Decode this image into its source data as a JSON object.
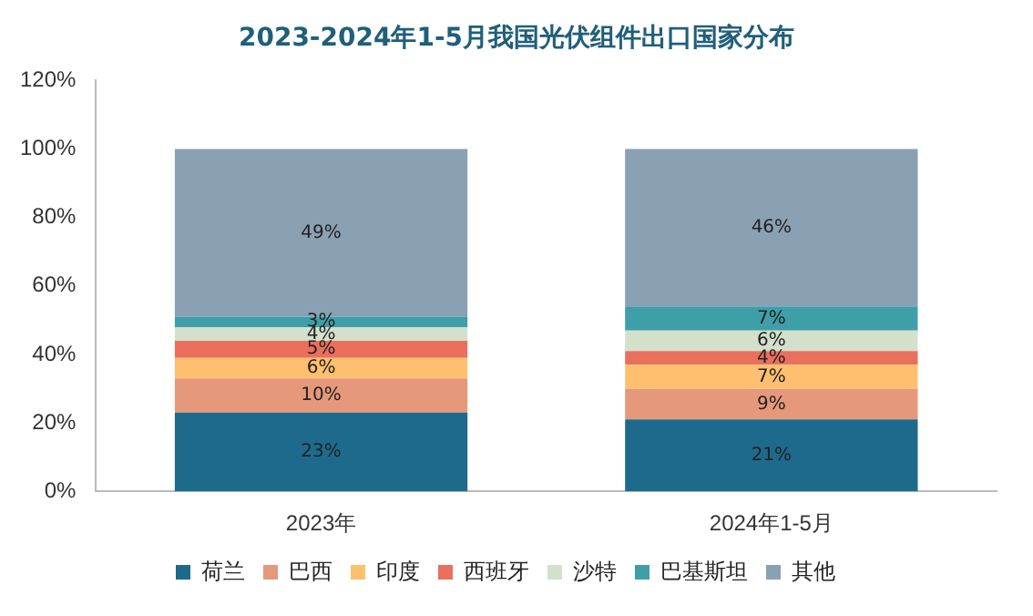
{
  "chart_data": {
    "type": "bar",
    "title": "2023-2024年1-5月我国光伏组件出口国家分布",
    "categories": [
      "2023年",
      "2024年1-5月"
    ],
    "stacked": true,
    "ylim": [
      0,
      120
    ],
    "yticks": [
      {
        "value": 0,
        "label": "0%"
      },
      {
        "value": 20,
        "label": "20%"
      },
      {
        "value": 40,
        "label": "40%"
      },
      {
        "value": 60,
        "label": "60%"
      },
      {
        "value": 80,
        "label": "80%"
      },
      {
        "value": 100,
        "label": "100%"
      },
      {
        "value": 120,
        "label": "120%"
      }
    ],
    "grid": false,
    "legend": "bottom",
    "series": [
      {
        "name": "荷兰",
        "color": "#1d6a8c",
        "values": [
          23,
          21
        ],
        "value_labels": [
          "23%",
          "21%"
        ]
      },
      {
        "name": "巴西",
        "color": "#e5997a",
        "values": [
          10,
          9
        ],
        "value_labels": [
          "10%",
          "9%"
        ]
      },
      {
        "name": "印度",
        "color": "#fec06f",
        "values": [
          6,
          7
        ],
        "value_labels": [
          "6%",
          "7%"
        ]
      },
      {
        "name": "西班牙",
        "color": "#ea6f5d",
        "values": [
          5,
          4
        ],
        "value_labels": [
          "5%",
          "4%"
        ]
      },
      {
        "name": "沙特",
        "color": "#d3e0cc",
        "values": [
          4,
          6
        ],
        "value_labels": [
          "4%",
          "6%"
        ]
      },
      {
        "name": "巴基斯坦",
        "color": "#3f9fa9",
        "values": [
          3,
          7
        ],
        "value_labels": [
          "3%",
          "7%"
        ]
      },
      {
        "name": "其他",
        "color": "#8aa0b3",
        "values": [
          49,
          46
        ],
        "value_labels": [
          "49%",
          "46%"
        ]
      }
    ]
  }
}
